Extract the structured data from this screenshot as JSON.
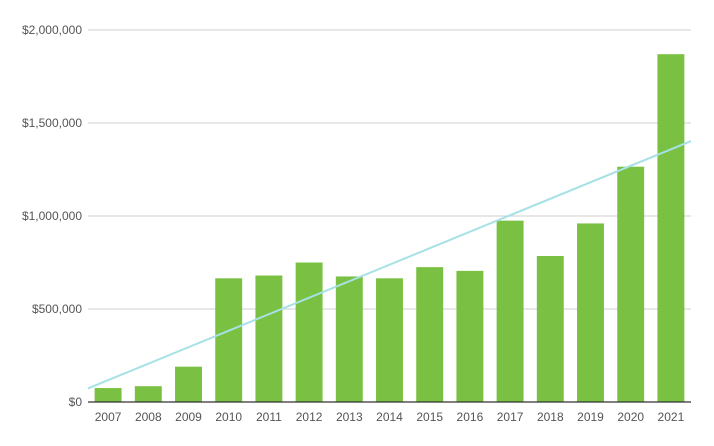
{
  "chart_data": {
    "type": "bar",
    "title": "",
    "xlabel": "",
    "ylabel": "",
    "categories": [
      "2007",
      "2008",
      "2009",
      "2010",
      "2011",
      "2012",
      "2013",
      "2014",
      "2015",
      "2016",
      "2017",
      "2018",
      "2019",
      "2020",
      "2021"
    ],
    "series": [
      {
        "values": [
          75000,
          85000,
          190000,
          665000,
          680000,
          750000,
          675000,
          665000,
          725000,
          705000,
          975000,
          785000,
          960000,
          1265000,
          1870000
        ],
        "color": "#7ac143"
      }
    ],
    "trendline": {
      "type": "linear",
      "color": "#a6e1e6"
    },
    "ylim": [
      0,
      2000000
    ],
    "y_ticks": [
      {
        "value": 0,
        "label": "$0"
      },
      {
        "value": 500000,
        "label": "$500,000"
      },
      {
        "value": 1000000,
        "label": "$1,000,000"
      },
      {
        "value": 1500000,
        "label": "$1,500,000"
      },
      {
        "value": 2000000,
        "label": "$2,000,000"
      }
    ],
    "grid": true,
    "legend": "none"
  }
}
